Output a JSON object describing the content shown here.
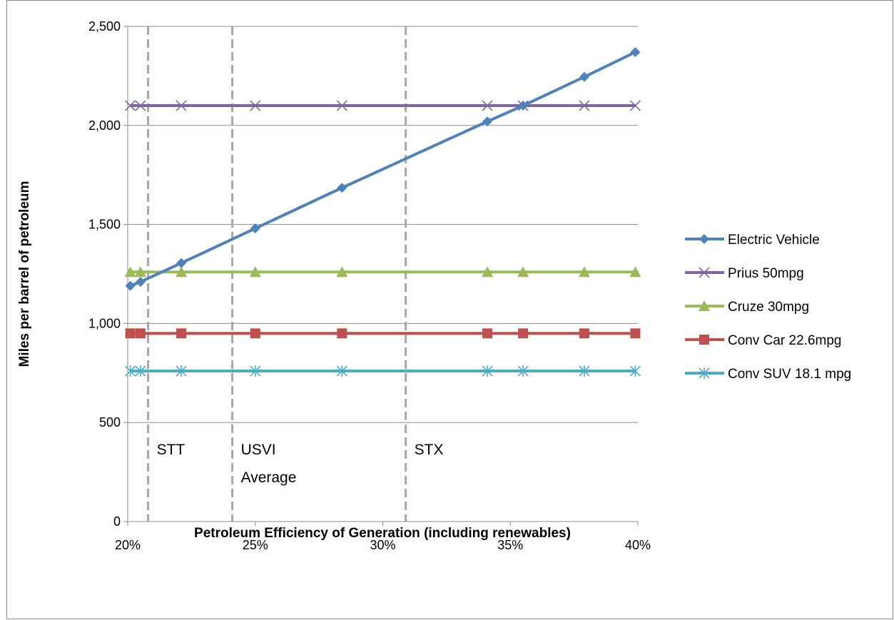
{
  "chart_data": {
    "type": "line",
    "title": "",
    "xlabel": "Petroleum Efficiency of Generation (including renewables)",
    "ylabel": "Miles per barrel of petroleum",
    "xlim": [
      0.2,
      0.4
    ],
    "ylim": [
      0,
      2500
    ],
    "x_ticks": [
      "20%",
      "25%",
      "30%",
      "35%",
      "40%"
    ],
    "y_ticks": [
      "0",
      "500",
      "1,000",
      "1,500",
      "2,000",
      "2,500"
    ],
    "grid": "horizontal",
    "legend_position": "right",
    "x": [
      0.201,
      0.205,
      0.221,
      0.25,
      0.284,
      0.341,
      0.355,
      0.379,
      0.399
    ],
    "series": [
      {
        "name": "Electric Vehicle",
        "color": "#4f81bd",
        "marker": "diamond",
        "values": [
          1190,
          1210,
          1305,
          1480,
          1685,
          2020,
          2100,
          2245,
          2370
        ]
      },
      {
        "name": "Prius 50mpg",
        "color": "#8064a2",
        "marker": "x",
        "values": [
          2100,
          2100,
          2100,
          2100,
          2100,
          2100,
          2100,
          2100,
          2100
        ]
      },
      {
        "name": "Cruze 30mpg",
        "color": "#9bbb59",
        "marker": "triangle",
        "values": [
          1260,
          1260,
          1260,
          1260,
          1260,
          1260,
          1260,
          1260,
          1260
        ]
      },
      {
        "name": "Conv Car 22.6mpg",
        "color": "#c0504d",
        "marker": "square",
        "values": [
          950,
          950,
          950,
          950,
          950,
          950,
          950,
          950,
          950
        ]
      },
      {
        "name": "Conv SUV 18.1 mpg",
        "color": "#4bacc6",
        "marker": "star",
        "values": [
          760,
          760,
          760,
          760,
          760,
          760,
          760,
          760,
          760
        ]
      }
    ],
    "reference_lines": [
      {
        "x": 0.208,
        "lines": [
          "STT"
        ]
      },
      {
        "x": 0.241,
        "lines": [
          "USVI",
          "Average"
        ]
      },
      {
        "x": 0.309,
        "lines": [
          "STX"
        ]
      }
    ],
    "reference_line_color": "#a6a6a6"
  }
}
